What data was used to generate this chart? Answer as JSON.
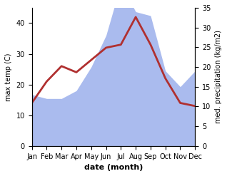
{
  "months": [
    "Jan",
    "Feb",
    "Mar",
    "Apr",
    "May",
    "Jun",
    "Jul",
    "Aug",
    "Sep",
    "Oct",
    "Nov",
    "Dec"
  ],
  "temp": [
    14,
    21,
    26,
    24,
    28,
    32,
    33,
    42,
    33,
    22,
    14,
    13
  ],
  "precip": [
    13,
    12,
    12,
    14,
    20,
    28,
    41,
    34,
    33,
    19,
    15,
    19
  ],
  "temp_color": "#b03030",
  "precip_color": "#aabbee",
  "xlabel": "date (month)",
  "ylabel_left": "max temp (C)",
  "ylabel_right": "med. precipitation (kg/m2)",
  "ylim_left": [
    0,
    45
  ],
  "ylim_right": [
    0,
    35
  ],
  "yticks_left": [
    0,
    10,
    20,
    30,
    40
  ],
  "yticks_right": [
    0,
    5,
    10,
    15,
    20,
    25,
    30,
    35
  ],
  "bg_color": "#ffffff",
  "line_width": 2.0
}
